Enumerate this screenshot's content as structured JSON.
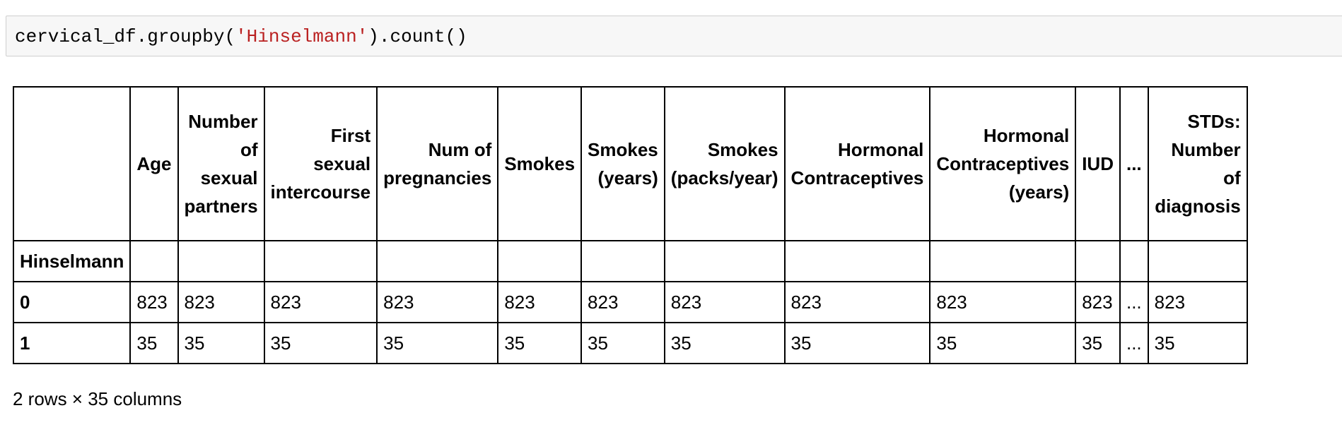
{
  "code": {
    "prefix": "cervical_df.groupby(",
    "string": "'Hinselmann'",
    "suffix": ").count()"
  },
  "table": {
    "columns": [
      "",
      "Age",
      "Number of sexual partners",
      "First sexual intercourse",
      "Num of pregnancies",
      "Smokes",
      "Smokes (years)",
      "Smokes (packs/year)",
      "Hormonal Contraceptives",
      "Hormonal Contraceptives (years)",
      "IUD",
      "...",
      "STDs: Number of diagnosis"
    ],
    "index_name": "Hinselmann",
    "rows": [
      {
        "index": "0",
        "values": [
          "823",
          "823",
          "823",
          "823",
          "823",
          "823",
          "823",
          "823",
          "823",
          "823",
          "...",
          "823"
        ]
      },
      {
        "index": "1",
        "values": [
          "35",
          "35",
          "35",
          "35",
          "35",
          "35",
          "35",
          "35",
          "35",
          "35",
          "...",
          "35"
        ]
      }
    ]
  },
  "footer": "2 rows × 35 columns"
}
